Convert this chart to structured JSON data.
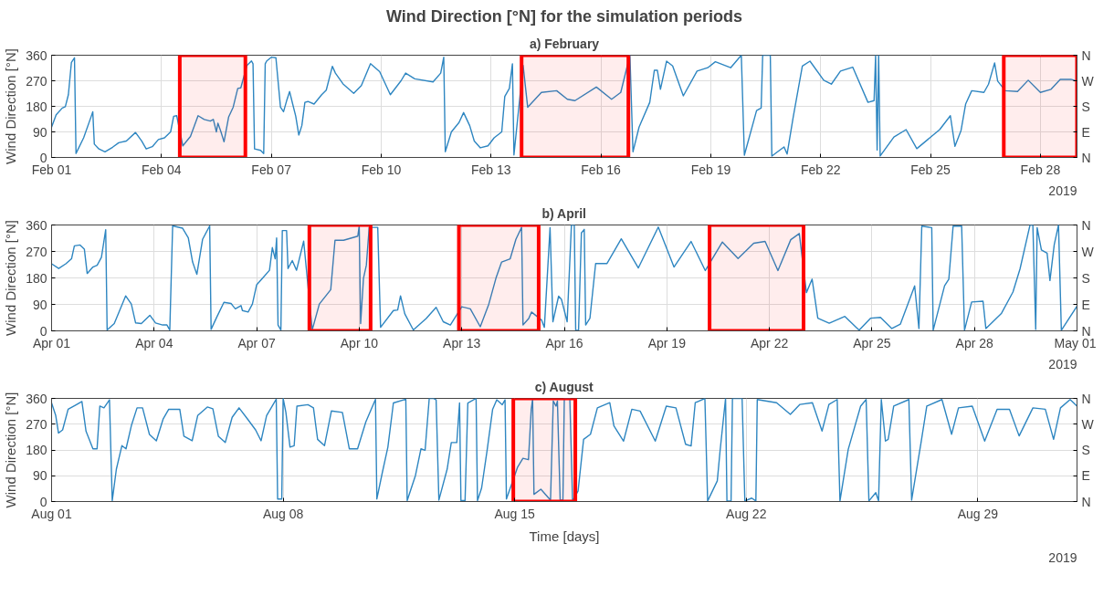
{
  "chart_data": [
    {
      "type": "line",
      "title": "Wind Direction [°N] for the simulation periods",
      "subtitle": "a) February",
      "ylabel": "Wind Direction [°N]",
      "annotations": [
        "2019"
      ],
      "grid": true,
      "xlim": [
        "2019-02-01",
        "2019-03-01"
      ],
      "xticks": [
        {
          "value": "2019-02-01",
          "label": "Feb 01"
        },
        {
          "value": "2019-02-04",
          "label": "Feb 04"
        },
        {
          "value": "2019-02-07",
          "label": "Feb 07"
        },
        {
          "value": "2019-02-10",
          "label": "Feb 10"
        },
        {
          "value": "2019-02-13",
          "label": "Feb 13"
        },
        {
          "value": "2019-02-16",
          "label": "Feb 16"
        },
        {
          "value": "2019-02-19",
          "label": "Feb 19"
        },
        {
          "value": "2019-02-22",
          "label": "Feb 22"
        },
        {
          "value": "2019-02-25",
          "label": "Feb 25"
        },
        {
          "value": "2019-02-28",
          "label": "Feb 28"
        }
      ],
      "ylim": [
        0,
        360
      ],
      "yticks": [
        0,
        90,
        180,
        270,
        360
      ],
      "y2_categories": [
        "N",
        "W",
        "S",
        "E",
        "N"
      ],
      "bands": [
        {
          "axis": "x",
          "from": "2019-02-04T12:00",
          "to": "2019-02-06T07:00",
          "color": "#ff0000"
        },
        {
          "axis": "x",
          "from": "2019-02-13T20:00",
          "to": "2019-02-16T18:00",
          "color": "#ff0000"
        },
        {
          "axis": "x",
          "from": "2019-02-27T00:00",
          "to": "2019-03-01T00:00",
          "color": "#ff0000"
        }
      ],
      "x": [
        "2019-02-01T00:00",
        "2019-02-01T03:00",
        "2019-02-01T07:00",
        "2019-02-01T09:00",
        "2019-02-01T11:00",
        "2019-02-01T13:00",
        "2019-02-01T15:00",
        "2019-02-01T16:00",
        "2019-02-01T21:00",
        "2019-02-02T02:00",
        "2019-02-02T03:00",
        "2019-02-02T04:00",
        "2019-02-02T07:00",
        "2019-02-02T11:00",
        "2019-02-02T16:00",
        "2019-02-02T20:00",
        "2019-02-03T01:00",
        "2019-02-03T07:00",
        "2019-02-03T11:00",
        "2019-02-03T14:00",
        "2019-02-03T18:00",
        "2019-02-03T22:00",
        "2019-02-04T02:00",
        "2019-02-04T06:00",
        "2019-02-04T08:00",
        "2019-02-04T10:00",
        "2019-02-04T14:00",
        "2019-02-04T19:00",
        "2019-02-05T00:00",
        "2019-02-05T04:00",
        "2019-02-05T08:00",
        "2019-02-05T10:00",
        "2019-02-05T12:00",
        "2019-02-05T13:00",
        "2019-02-05T15:00",
        "2019-02-05T17:00",
        "2019-02-05T20:00",
        "2019-02-05T23:00",
        "2019-02-06T02:00",
        "2019-02-06T04:00",
        "2019-02-06T08:00",
        "2019-02-06T11:00",
        "2019-02-06T12:00",
        "2019-02-06T13:00",
        "2019-02-06T17:00",
        "2019-02-06T19:00",
        "2019-02-06T20:00",
        "2019-02-06T21:00",
        "2019-02-07T00:00",
        "2019-02-07T03:00",
        "2019-02-07T06:00",
        "2019-02-07T08:00",
        "2019-02-07T10:00",
        "2019-02-07T12:00",
        "2019-02-07T14:00",
        "2019-02-07T16:00",
        "2019-02-07T18:00",
        "2019-02-07T20:00",
        "2019-02-07T22:00",
        "2019-02-08T00:00",
        "2019-02-08T04:00",
        "2019-02-08T09:00",
        "2019-02-08T12:00",
        "2019-02-08T16:00",
        "2019-02-08T18:00",
        "2019-02-08T23:00",
        "2019-02-09T06:00",
        "2019-02-09T11:00",
        "2019-02-09T17:00",
        "2019-02-09T23:00",
        "2019-02-10T06:00",
        "2019-02-10T13:00",
        "2019-02-10T16:00",
        "2019-02-10T22:00",
        "2019-02-11T10:00",
        "2019-02-11T15:00",
        "2019-02-11T17:00",
        "2019-02-11T18:00",
        "2019-02-11T22:00",
        "2019-02-12T03:00",
        "2019-02-12T06:00",
        "2019-02-12T10:00",
        "2019-02-12T13:00",
        "2019-02-12T17:00",
        "2019-02-12T22:00",
        "2019-02-13T02:00",
        "2019-02-13T07:00",
        "2019-02-13T09:00",
        "2019-02-13T12:00",
        "2019-02-13T14:00",
        "2019-02-13T15:00",
        "2019-02-13T21:00",
        "2019-02-14T00:00",
        "2019-02-14T09:00",
        "2019-02-14T19:00",
        "2019-02-15T02:00",
        "2019-02-15T07:00",
        "2019-02-15T21:00",
        "2019-02-16T07:00",
        "2019-02-16T13:00",
        "2019-02-16T19:00",
        "2019-02-16T21:00",
        "2019-02-17T01:00",
        "2019-02-17T08:00",
        "2019-02-17T11:00",
        "2019-02-17T13:00",
        "2019-02-17T15:00",
        "2019-02-17T19:00",
        "2019-02-17T23:00",
        "2019-02-18T06:00",
        "2019-02-18T15:00",
        "2019-02-18T22:00",
        "2019-02-19T03:00",
        "2019-02-19T13:00",
        "2019-02-19T20:00",
        "2019-02-19T22:00",
        "2019-02-20T06:00",
        "2019-02-20T09:00",
        "2019-02-20T10:00",
        "2019-02-20T15:00",
        "2019-02-20T16:00",
        "2019-02-21T00:00",
        "2019-02-21T02:00",
        "2019-02-21T06:00",
        "2019-02-21T12:00",
        "2019-02-21T17:00",
        "2019-02-22T02:00",
        "2019-02-22T07:00",
        "2019-02-22T13:00",
        "2019-02-22T21:00",
        "2019-02-23T07:00",
        "2019-02-23T11:00",
        "2019-02-23T12:00",
        "2019-02-23T13:00",
        "2019-02-23T14:00",
        "2019-02-23T15:00",
        "2019-02-24T00:00",
        "2019-02-24T08:00",
        "2019-02-24T15:00",
        "2019-02-25T06:00",
        "2019-02-25T13:00",
        "2019-02-25T16:00",
        "2019-02-25T20:00",
        "2019-02-25T23:00",
        "2019-02-26T03:00",
        "2019-02-26T11:00",
        "2019-02-26T14:00",
        "2019-02-26T18:00",
        "2019-02-26T20:00",
        "2019-02-27T01:00",
        "2019-02-27T09:00",
        "2019-02-27T16:00",
        "2019-02-28T00:00",
        "2019-02-28T07:00",
        "2019-02-28T13:00",
        "2019-02-28T20:00",
        "2019-03-01T00:00"
      ],
      "series": [
        {
          "color": "#2e86c1",
          "values": [
            107,
            150,
            174,
            179,
            221,
            335,
            351,
            14,
            69,
            145,
            161,
            47,
            30,
            20,
            36,
            52,
            58,
            88,
            58,
            30,
            38,
            63,
            69,
            90,
            145,
            147,
            41,
            74,
            147,
            134,
            128,
            134,
            90,
            121,
            90,
            55,
            142,
            177,
            243,
            245,
            324,
            340,
            330,
            30,
            25,
            14,
            330,
            340,
            353,
            351,
            177,
            161,
            199,
            232,
            188,
            145,
            79,
            112,
            194,
            197,
            188,
            221,
            237,
            321,
            297,
            259,
            226,
            253,
            330,
            302,
            221,
            270,
            297,
            277,
            266,
            297,
            353,
            20,
            90,
            123,
            158,
            112,
            58,
            34,
            41,
            69,
            90,
            215,
            243,
            330,
            9,
            324,
            177,
            229,
            235,
            205,
            200,
            248,
            205,
            229,
            360,
            20,
            107,
            194,
            307,
            307,
            240,
            339,
            322,
            217,
            304,
            316,
            337,
            316,
            360,
            8,
            165,
            174,
            360,
            360,
            5,
            37,
            12,
            142,
            322,
            339,
            272,
            258,
            304,
            318,
            194,
            200,
            360,
            26,
            360,
            5,
            72,
            98,
            31,
            98,
            147,
            39,
            95,
            188,
            235,
            229,
            258,
            333,
            269,
            235,
            232,
            272,
            229,
            240,
            275,
            275,
            269
          ]
        }
      ]
    },
    {
      "type": "line",
      "title": "b) April",
      "ylabel": "Wind Direction [°N]",
      "annotations": [
        "2019"
      ],
      "grid": true,
      "xlim": [
        "2019-04-01",
        "2019-05-01"
      ],
      "xticks": [
        {
          "value": "2019-04-01",
          "label": "Apr 01"
        },
        {
          "value": "2019-04-04",
          "label": "Apr 04"
        },
        {
          "value": "2019-04-07",
          "label": "Apr 07"
        },
        {
          "value": "2019-04-10",
          "label": "Apr 10"
        },
        {
          "value": "2019-04-13",
          "label": "Apr 13"
        },
        {
          "value": "2019-04-16",
          "label": "Apr 16"
        },
        {
          "value": "2019-04-19",
          "label": "Apr 19"
        },
        {
          "value": "2019-04-22",
          "label": "Apr 22"
        },
        {
          "value": "2019-04-25",
          "label": "Apr 25"
        },
        {
          "value": "2019-04-28",
          "label": "Apr 28"
        },
        {
          "value": "2019-05-01",
          "label": "May 01"
        }
      ],
      "ylim": [
        0,
        360
      ],
      "yticks": [
        0,
        90,
        180,
        270,
        360
      ],
      "y2_categories": [
        "N",
        "W",
        "S",
        "E",
        "N"
      ],
      "bands": [
        {
          "axis": "x",
          "from": "2019-04-08T13:00",
          "to": "2019-04-10T08:00",
          "color": "#ff0000"
        },
        {
          "axis": "x",
          "from": "2019-04-12T22:00",
          "to": "2019-04-15T06:00",
          "color": "#ff0000"
        },
        {
          "axis": "x",
          "from": "2019-04-20T06:00",
          "to": "2019-04-23T00:00",
          "color": "#ff0000"
        }
      ],
      "x": [
        "2019-04-01T00:00",
        "2019-04-01T05:00",
        "2019-04-01T10:00",
        "2019-04-01T14:00",
        "2019-04-01T16:00",
        "2019-04-01T20:00",
        "2019-04-01T23:00",
        "2019-04-02T01:00",
        "2019-04-02T05:00",
        "2019-04-02T08:00",
        "2019-04-02T11:00",
        "2019-04-02T14:00",
        "2019-04-02T15:00",
        "2019-04-02T20:00",
        "2019-04-03T04:00",
        "2019-04-03T08:00",
        "2019-04-03T11:00",
        "2019-04-03T15:00",
        "2019-04-03T21:00",
        "2019-04-04T01:00",
        "2019-04-04T06:00",
        "2019-04-04T09:00",
        "2019-04-04T11:00",
        "2019-04-04T13:00",
        "2019-04-04T20:00",
        "2019-04-05T00:00",
        "2019-04-05T03:00",
        "2019-04-05T06:00",
        "2019-04-05T10:00",
        "2019-04-05T15:00",
        "2019-04-05T16:00",
        "2019-04-05T20:00",
        "2019-04-06T01:00",
        "2019-04-06T06:00",
        "2019-04-06T09:00",
        "2019-04-06T13:00",
        "2019-04-06T14:00",
        "2019-04-06T18:00",
        "2019-04-06T21:00",
        "2019-04-07T00:00",
        "2019-04-07T05:00",
        "2019-04-07T09:00",
        "2019-04-07T11:00",
        "2019-04-07T13:00",
        "2019-04-07T14:00",
        "2019-04-07T15:00",
        "2019-04-07T17:00",
        "2019-04-07T18:00",
        "2019-04-07T21:00",
        "2019-04-07T22:00",
        "2019-04-08T01:00",
        "2019-04-08T04:00",
        "2019-04-08T09:00",
        "2019-04-08T15:00",
        "2019-04-08T20:00",
        "2019-04-09T04:00",
        "2019-04-09T07:00",
        "2019-04-09T13:00",
        "2019-04-09T23:00",
        "2019-04-10T00:00",
        "2019-04-10T01:00",
        "2019-04-10T03:00",
        "2019-04-10T05:00",
        "2019-04-10T07:00",
        "2019-04-10T13:00",
        "2019-04-10T15:00",
        "2019-04-11T00:00",
        "2019-04-11T03:00",
        "2019-04-11T05:00",
        "2019-04-11T08:00",
        "2019-04-11T14:00",
        "2019-04-11T23:00",
        "2019-04-12T06:00",
        "2019-04-12T11:00",
        "2019-04-12T16:00",
        "2019-04-13T00:00",
        "2019-04-13T06:00",
        "2019-04-13T13:00",
        "2019-04-13T19:00",
        "2019-04-14T00:00",
        "2019-04-14T04:00",
        "2019-04-14T10:00",
        "2019-04-14T14:00",
        "2019-04-14T18:00",
        "2019-04-14T19:00",
        "2019-04-14T23:00",
        "2019-04-15T01:00",
        "2019-04-15T08:00",
        "2019-04-15T10:00",
        "2019-04-15T14:00",
        "2019-04-15T16:00",
        "2019-04-15T20:00",
        "2019-04-15T22:00",
        "2019-04-16T02:00",
        "2019-04-16T05:00",
        "2019-04-16T07:00",
        "2019-04-16T08:00",
        "2019-04-16T10:00",
        "2019-04-16T12:00",
        "2019-04-16T14:00",
        "2019-04-16T15:00",
        "2019-04-16T18:00",
        "2019-04-16T22:00",
        "2019-04-17T06:00",
        "2019-04-17T16:00",
        "2019-04-18T04:00",
        "2019-04-18T18:00",
        "2019-04-19T05:00",
        "2019-04-19T17:00",
        "2019-04-20T03:00",
        "2019-04-20T15:00",
        "2019-04-21T02:00",
        "2019-04-21T13:00",
        "2019-04-21T21:00",
        "2019-04-22T06:00",
        "2019-04-22T15:00",
        "2019-04-22T21:00",
        "2019-04-23T02:00",
        "2019-04-23T06:00",
        "2019-04-23T10:00",
        "2019-04-23T18:00",
        "2019-04-24T05:00",
        "2019-04-24T15:00",
        "2019-04-24T23:00",
        "2019-04-25T06:00",
        "2019-04-25T14:00",
        "2019-04-25T20:00",
        "2019-04-26T06:00",
        "2019-04-26T09:00",
        "2019-04-26T11:00",
        "2019-04-26T18:00",
        "2019-04-26T19:00",
        "2019-04-27T03:00",
        "2019-04-27T06:00",
        "2019-04-27T09:00",
        "2019-04-27T15:00",
        "2019-04-27T17:00",
        "2019-04-27T22:00",
        "2019-04-28T06:00",
        "2019-04-28T08:00",
        "2019-04-28T19:00",
        "2019-04-29T03:00",
        "2019-04-29T08:00",
        "2019-04-29T15:00",
        "2019-04-29T17:00",
        "2019-04-29T19:00",
        "2019-04-29T20:00",
        "2019-04-29T23:00",
        "2019-04-30T03:00",
        "2019-04-30T05:00",
        "2019-04-30T08:00",
        "2019-04-30T11:00",
        "2019-04-30T13:00",
        "2019-05-01T00:00"
      ],
      "series": [
        {
          "color": "#2e86c1",
          "values": [
            228,
            212,
            228,
            245,
            289,
            292,
            278,
            195,
            217,
            223,
            250,
            344,
            3,
            25,
            119,
            91,
            27,
            25,
            53,
            27,
            20,
            20,
            3,
            357,
            349,
            316,
            234,
            192,
            311,
            357,
            5,
            47,
            97,
            93,
            75,
            86,
            69,
            64,
            91,
            157,
            184,
            206,
            283,
            245,
            316,
            20,
            3,
            341,
            341,
            212,
            239,
            206,
            305,
            3,
            91,
            140,
            308,
            308,
            322,
            357,
            25,
            179,
            223,
            352,
            352,
            12,
            69,
            71,
            119,
            58,
            3,
            42,
            80,
            31,
            20,
            82,
            75,
            14,
            91,
            179,
            234,
            245,
            311,
            352,
            20,
            42,
            64,
            37,
            12,
            351,
            31,
            118,
            107,
            31,
            360,
            360,
            2,
            2,
            333,
            345,
            20,
            43,
            229,
            229,
            313,
            214,
            353,
            217,
            304,
            205,
            302,
            246,
            298,
            304,
            205,
            310,
            331,
            130,
            176,
            43,
            26,
            49,
            2,
            43,
            46,
            8,
            23,
            153,
            8,
            356,
            351,
            2,
            153,
            176,
            356,
            356,
            2,
            98,
            101,
            8,
            60,
            132,
            211,
            360,
            360,
            5,
            351,
            275,
            264,
            171,
            293,
            360,
            2,
            84
          ]
        }
      ]
    },
    {
      "type": "line",
      "title": "c) August",
      "xlabel": "Time [days]",
      "ylabel": "Wind Direction [°N]",
      "annotations": [
        "2019"
      ],
      "grid": true,
      "xlim": [
        "2019-08-01",
        "2019-09-01"
      ],
      "xticks": [
        {
          "value": "2019-08-01",
          "label": "Aug 01"
        },
        {
          "value": "2019-08-08",
          "label": "Aug 08"
        },
        {
          "value": "2019-08-15",
          "label": "Aug 15"
        },
        {
          "value": "2019-08-22",
          "label": "Aug 22"
        },
        {
          "value": "2019-08-29",
          "label": "Aug 29"
        }
      ],
      "ylim": [
        0,
        360
      ],
      "yticks": [
        0,
        90,
        180,
        270,
        360
      ],
      "y2_categories": [
        "N",
        "W",
        "S",
        "E",
        "N"
      ],
      "bands": [
        {
          "axis": "x",
          "from": "2019-08-14T23:00",
          "to": "2019-08-16T20:00",
          "color": "#ff0000"
        }
      ],
      "x": [
        "2019-08-01T00:00",
        "2019-08-01T03:00",
        "2019-08-01T05:00",
        "2019-08-01T08:00",
        "2019-08-01T12:00",
        "2019-08-01T18:00",
        "2019-08-01T22:00",
        "2019-08-02T01:00",
        "2019-08-02T06:00",
        "2019-08-02T09:00",
        "2019-08-02T11:00",
        "2019-08-02T14:00",
        "2019-08-02T18:00",
        "2019-08-02T20:00",
        "2019-08-02T23:00",
        "2019-08-03T03:00",
        "2019-08-03T06:00",
        "2019-08-03T10:00",
        "2019-08-03T14:00",
        "2019-08-03T18:00",
        "2019-08-03T23:00",
        "2019-08-04T04:00",
        "2019-08-04T09:00",
        "2019-08-04T13:00",
        "2019-08-04T21:00",
        "2019-08-05T00:00",
        "2019-08-05T06:00",
        "2019-08-05T10:00",
        "2019-08-05T17:00",
        "2019-08-05T21:00",
        "2019-08-06T01:00",
        "2019-08-06T06:00",
        "2019-08-06T11:00",
        "2019-08-06T16:00",
        "2019-08-06T22:00",
        "2019-08-07T04:00",
        "2019-08-07T08:00",
        "2019-08-07T12:00",
        "2019-08-07T19:00",
        "2019-08-07T20:00",
        "2019-08-07T23:00",
        "2019-08-08T00:00",
        "2019-08-08T02:00",
        "2019-08-08T05:00",
        "2019-08-08T08:00",
        "2019-08-08T10:00",
        "2019-08-08T18:00",
        "2019-08-08T22:00",
        "2019-08-09T01:00",
        "2019-08-09T06:00",
        "2019-08-09T11:00",
        "2019-08-09T19:00",
        "2019-08-10T00:00",
        "2019-08-10T06:00",
        "2019-08-10T12:00",
        "2019-08-10T19:00",
        "2019-08-10T20:00",
        "2019-08-11T00:00",
        "2019-08-11T04:00",
        "2019-08-11T08:00",
        "2019-08-11T17:00",
        "2019-08-11T18:00",
        "2019-08-12T00:00",
        "2019-08-12T04:00",
        "2019-08-12T07:00",
        "2019-08-12T10:00",
        "2019-08-12T13:00",
        "2019-08-12T15:00",
        "2019-08-12T17:00",
        "2019-08-12T23:00",
        "2019-08-13T02:00",
        "2019-08-13T06:00",
        "2019-08-13T08:00",
        "2019-08-13T09:00",
        "2019-08-13T12:00",
        "2019-08-13T14:00",
        "2019-08-13T20:00",
        "2019-08-13T21:00",
        "2019-08-14T00:00",
        "2019-08-14T04:00",
        "2019-08-14T08:00",
        "2019-08-14T11:00",
        "2019-08-14T15:00",
        "2019-08-14T17:00",
        "2019-08-14T18:00",
        "2019-08-15T02:00",
        "2019-08-15T06:00",
        "2019-08-15T10:00",
        "2019-08-15T12:00",
        "2019-08-15T13:00",
        "2019-08-15T14:00",
        "2019-08-15T19:00",
        "2019-08-16T02:00",
        "2019-08-16T04:00",
        "2019-08-16T06:00",
        "2019-08-16T07:00",
        "2019-08-16T09:00",
        "2019-08-16T11:00",
        "2019-08-16T12:00",
        "2019-08-16T16:00",
        "2019-08-16T18:00",
        "2019-08-16T22:00",
        "2019-08-17T02:00",
        "2019-08-17T07:00",
        "2019-08-17T12:00",
        "2019-08-17T21:00",
        "2019-08-18T00:00",
        "2019-08-18T07:00",
        "2019-08-18T13:00",
        "2019-08-18T19:00",
        "2019-08-19T06:00",
        "2019-08-19T14:00",
        "2019-08-19T21:00",
        "2019-08-20T04:00",
        "2019-08-20T08:00",
        "2019-08-20T11:00",
        "2019-08-20T18:00",
        "2019-08-20T20:00",
        "2019-08-21T03:00",
        "2019-08-21T05:00",
        "2019-08-21T09:00",
        "2019-08-21T10:00",
        "2019-08-21T13:00",
        "2019-08-21T14:00",
        "2019-08-21T21:00",
        "2019-08-21T23:00",
        "2019-08-22T04:00",
        "2019-08-22T07:00",
        "2019-08-22T08:00",
        "2019-08-22T22:00",
        "2019-08-23T08:00",
        "2019-08-23T15:00",
        "2019-08-24T00:00",
        "2019-08-24T07:00",
        "2019-08-24T12:00",
        "2019-08-24T18:00",
        "2019-08-24T20:00",
        "2019-08-25T02:00",
        "2019-08-25T11:00",
        "2019-08-25T15:00",
        "2019-08-25T17:00",
        "2019-08-25T22:00",
        "2019-08-26T00:00",
        "2019-08-26T02:00",
        "2019-08-26T05:00",
        "2019-08-26T07:00",
        "2019-08-26T11:00",
        "2019-08-26T22:00",
        "2019-08-27T00:00",
        "2019-08-27T07:00",
        "2019-08-27T11:00",
        "2019-08-27T22:00",
        "2019-08-28T05:00",
        "2019-08-28T10:00",
        "2019-08-28T20:00",
        "2019-08-29T05:00",
        "2019-08-29T14:00",
        "2019-08-29T23:00",
        "2019-08-30T06:00",
        "2019-08-30T16:00",
        "2019-08-31T01:00",
        "2019-08-31T07:00",
        "2019-08-31T12:00",
        "2019-08-31T19:00",
        "2019-09-01T00:00"
      ],
      "series": [
        {
          "color": "#2e86c1",
          "values": [
            344,
            300,
            239,
            250,
            322,
            338,
            349,
            245,
            184,
            184,
            333,
            327,
            355,
            3,
            113,
            195,
            184,
            267,
            327,
            327,
            234,
            212,
            289,
            322,
            322,
            228,
            212,
            300,
            330,
            324,
            228,
            206,
            294,
            327,
            289,
            250,
            212,
            300,
            357,
            9,
            9,
            360,
            311,
            190,
            195,
            333,
            338,
            327,
            217,
            195,
            316,
            311,
            184,
            184,
            278,
            357,
            9,
            102,
            190,
            344,
            357,
            3,
            91,
            184,
            179,
            360,
            360,
            355,
            5,
            113,
            206,
            206,
            344,
            3,
            3,
            344,
            360,
            3,
            47,
            179,
            322,
            355,
            338,
            355,
            9,
            119,
            151,
            146,
            322,
            357,
            25,
            43,
            5,
            351,
            333,
            351,
            5,
            5,
            360,
            360,
            2,
            37,
            217,
            235,
            327,
            345,
            264,
            211,
            322,
            316,
            211,
            333,
            327,
            200,
            194,
            345,
            360,
            2,
            72,
            176,
            360,
            2,
            2,
            360,
            360,
            2,
            12,
            2,
            356,
            345,
            304,
            339,
            345,
            246,
            339,
            356,
            2,
            182,
            333,
            356,
            2,
            31,
            2,
            356,
            211,
            217,
            333,
            356,
            5,
            211,
            333,
            356,
            235,
            327,
            333,
            211,
            322,
            322,
            229,
            327,
            322,
            217,
            327,
            356,
            333
          ]
        }
      ]
    }
  ]
}
